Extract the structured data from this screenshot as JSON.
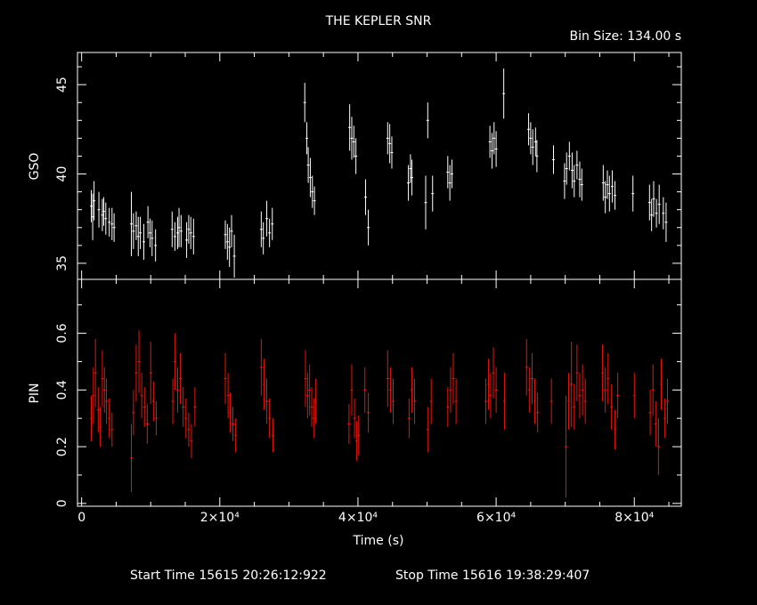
{
  "chart_data": {
    "title": "THE KEPLER SNR",
    "bin_size_label": "Bin Size: 134.00 s",
    "xlabel": "Time (s)",
    "footer_start": "Start Time 15615 20:26:12:922",
    "footer_stop": "Stop Time 15616 19:38:29:407",
    "xlim": [
      -600,
      86800
    ],
    "x_ticks": [
      0,
      20000,
      40000,
      60000,
      80000
    ],
    "x_tick_labels": [
      "0",
      "2×10⁴",
      "4×10⁴",
      "6×10⁴",
      "8×10⁴"
    ],
    "panels": [
      {
        "name": "gso",
        "type": "scatter-errorbar",
        "ylabel": "GSO",
        "ylim": [
          34.1,
          46.8
        ],
        "y_ticks": [
          35,
          40,
          45
        ],
        "color": "#ffffff",
        "series": [
          {
            "x": [
              1400,
              1600,
              1800,
              2500,
              3000,
              3200,
              3500,
              4000,
              4400,
              4700,
              7200,
              7500,
              7900,
              8200,
              8500,
              9000,
              9600,
              9900,
              10200,
              10700,
              13100,
              13500,
              13900,
              14100,
              14400,
              15200,
              15500,
              15800,
              16200,
              20800,
              21100,
              21400,
              21700,
              22100,
              26000,
              26300,
              26800,
              27200,
              27600,
              32300,
              32600,
              32800,
              33100,
              33400,
              33700,
              38800,
              39100,
              39400,
              39700,
              41100,
              41500,
              44300,
              44600,
              44900,
              47300,
              47600,
              47800,
              49800,
              50100,
              50800,
              53000,
              53300,
              53600,
              59100,
              59400,
              59700,
              60000,
              61100,
              64700,
              65000,
              65300,
              65700,
              65900,
              68300,
              69900,
              70200,
              70600,
              71000,
              71300,
              71700,
              72100,
              72400,
              75500,
              75800,
              76100,
              76400,
              76800,
              77200,
              79800,
              82200,
              82500,
              82800,
              83200,
              83600,
              84200,
              84600
            ],
            "y": [
              38.2,
              37.6,
              38.5,
              38.0,
              37.7,
              37.9,
              37.5,
              37.3,
              37.2,
              37.0,
              37.2,
              36.8,
              37.1,
              36.5,
              36.7,
              36.2,
              37.3,
              36.7,
              36.4,
              36.0,
              36.9,
              36.5,
              36.7,
              37.0,
              36.8,
              36.3,
              36.9,
              36.7,
              36.5,
              36.6,
              36.2,
              35.9,
              36.8,
              35.4,
              36.9,
              36.4,
              37.5,
              36.7,
              37.2,
              44.0,
              42.0,
              40.5,
              39.8,
              39.0,
              38.5,
              42.6,
              42.0,
              41.8,
              41.0,
              38.7,
              37.0,
              42.0,
              41.7,
              41.2,
              39.5,
              40.3,
              39.8,
              38.4,
              43.0,
              38.9,
              40.1,
              39.5,
              40.0,
              41.8,
              41.3,
              42.0,
              41.4,
              44.5,
              42.5,
              42.0,
              41.5,
              41.8,
              41.0,
              40.8,
              39.6,
              40.3,
              41.0,
              40.2,
              39.6,
              40.5,
              39.7,
              39.4,
              39.5,
              38.7,
              39.4,
              38.9,
              39.3,
              38.8,
              38.9,
              38.4,
              37.7,
              38.6,
              37.8,
              38.3,
              37.8,
              37.3
            ],
            "err": [
              0.9,
              1.3,
              1.1,
              1.0,
              0.9,
              0.8,
              0.9,
              0.8,
              0.9,
              0.8,
              1.8,
              1.0,
              0.8,
              1.1,
              0.9,
              1.0,
              0.9,
              0.8,
              1.0,
              0.9,
              1.0,
              0.8,
              0.9,
              1.1,
              0.9,
              1.0,
              0.8,
              0.9,
              1.0,
              0.8,
              1.0,
              1.1,
              0.9,
              1.2,
              1.0,
              0.9,
              1.0,
              0.8,
              0.9,
              1.1,
              0.9,
              1.0,
              1.1,
              0.9,
              0.8,
              1.3,
              1.2,
              0.9,
              1.0,
              1.0,
              1.0,
              0.9,
              1.1,
              0.9,
              1.0,
              0.8,
              1.0,
              1.5,
              1.0,
              1.0,
              0.9,
              1.0,
              0.8,
              0.9,
              1.0,
              0.9,
              1.0,
              1.4,
              0.9,
              0.9,
              1.0,
              0.8,
              0.9,
              0.8,
              1.0,
              0.9,
              0.8,
              1.0,
              0.9,
              0.8,
              1.0,
              0.9,
              1.0,
              0.9,
              0.8,
              1.0,
              0.9,
              0.8,
              1.0,
              1.0,
              0.9,
              1.0,
              0.8,
              1.1,
              0.9,
              1.1
            ]
          }
        ]
      },
      {
        "name": "pin",
        "type": "scatter-errorbar",
        "ylabel": "PIN",
        "ylim": [
          -0.01,
          0.79
        ],
        "y_ticks": [
          0,
          0.2,
          0.4,
          0.6
        ],
        "y_tick_labels": [
          "0",
          "0.2",
          "0.4",
          "0.6"
        ],
        "color": "#e8140a",
        "series": [
          {
            "x": [
              1400,
              1700,
              2000,
              2400,
              2700,
              3000,
              3300,
              3600,
              4000,
              4400,
              7200,
              7500,
              7900,
              8300,
              8700,
              9100,
              9500,
              10000,
              10400,
              10800,
              13200,
              13500,
              13900,
              14300,
              14700,
              15100,
              15500,
              15900,
              16400,
              20800,
              21200,
              21500,
              21900,
              22300,
              26000,
              26400,
              26800,
              27200,
              27700,
              32400,
              32700,
              33000,
              33300,
              33600,
              33900,
              38700,
              39100,
              39500,
              39800,
              40100,
              41000,
              41500,
              44300,
              44700,
              45100,
              47400,
              47800,
              48200,
              50100,
              50600,
              53000,
              53400,
              53800,
              54200,
              58500,
              58900,
              59200,
              59600,
              60000,
              61200,
              64400,
              64800,
              65200,
              65600,
              66000,
              68000,
              70100,
              70500,
              70900,
              71300,
              71700,
              72100,
              72500,
              72900,
              75400,
              75800,
              76200,
              76700,
              77200,
              77600,
              80000,
              82300,
              82700,
              83100,
              83500,
              83900,
              84400,
              84800
            ],
            "y": [
              0.3,
              0.38,
              0.46,
              0.33,
              0.27,
              0.44,
              0.4,
              0.36,
              0.3,
              0.26,
              0.16,
              0.32,
              0.46,
              0.5,
              0.38,
              0.34,
              0.28,
              0.46,
              0.36,
              0.3,
              0.36,
              0.5,
              0.4,
              0.44,
              0.34,
              0.3,
              0.26,
              0.22,
              0.34,
              0.44,
              0.38,
              0.32,
              0.28,
              0.24,
              0.48,
              0.42,
              0.36,
              0.3,
              0.24,
              0.44,
              0.38,
              0.4,
              0.34,
              0.3,
              0.36,
              0.28,
              0.4,
              0.3,
              0.22,
              0.24,
              0.4,
              0.32,
              0.44,
              0.4,
              0.36,
              0.3,
              0.4,
              0.36,
              0.26,
              0.36,
              0.34,
              0.4,
              0.44,
              0.36,
              0.36,
              0.42,
              0.38,
              0.46,
              0.4,
              0.36,
              0.48,
              0.4,
              0.44,
              0.36,
              0.32,
              0.36,
              0.2,
              0.36,
              0.42,
              0.34,
              0.46,
              0.38,
              0.4,
              0.36,
              0.46,
              0.4,
              0.44,
              0.34,
              0.26,
              0.38,
              0.38,
              0.32,
              0.4,
              0.28,
              0.2,
              0.42,
              0.3,
              0.36
            ],
            "err": [
              0.08,
              0.1,
              0.12,
              0.08,
              0.07,
              0.1,
              0.08,
              0.08,
              0.07,
              0.06,
              0.12,
              0.08,
              0.1,
              0.11,
              0.08,
              0.07,
              0.07,
              0.11,
              0.07,
              0.06,
              0.08,
              0.1,
              0.08,
              0.09,
              0.07,
              0.07,
              0.06,
              0.06,
              0.07,
              0.09,
              0.08,
              0.07,
              0.06,
              0.06,
              0.1,
              0.09,
              0.08,
              0.07,
              0.06,
              0.1,
              0.08,
              0.09,
              0.07,
              0.07,
              0.08,
              0.07,
              0.09,
              0.07,
              0.07,
              0.07,
              0.08,
              0.07,
              0.1,
              0.08,
              0.08,
              0.07,
              0.08,
              0.08,
              0.08,
              0.08,
              0.07,
              0.08,
              0.09,
              0.08,
              0.08,
              0.09,
              0.08,
              0.09,
              0.08,
              0.1,
              0.1,
              0.08,
              0.09,
              0.08,
              0.07,
              0.08,
              0.18,
              0.1,
              0.15,
              0.08,
              0.1,
              0.08,
              0.09,
              0.08,
              0.1,
              0.08,
              0.09,
              0.08,
              0.07,
              0.08,
              0.08,
              0.08,
              0.09,
              0.08,
              0.1,
              0.09,
              0.07,
              0.08
            ]
          }
        ]
      }
    ]
  }
}
